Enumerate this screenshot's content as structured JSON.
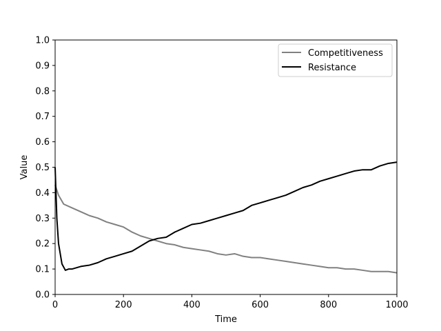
{
  "chart_data": {
    "type": "line",
    "title": "",
    "xlabel": "Time",
    "ylabel": "Value",
    "xlim": [
      0,
      1000
    ],
    "ylim": [
      0.0,
      1.0
    ],
    "xticks": [
      "0",
      "200",
      "400",
      "600",
      "800",
      "1000"
    ],
    "yticks": [
      "0.0",
      "0.1",
      "0.2",
      "0.3",
      "0.4",
      "0.5",
      "0.6",
      "0.7",
      "0.8",
      "0.9",
      "1.0"
    ],
    "grid": false,
    "legend_position": "top-right",
    "series": [
      {
        "name": "Competitiveness",
        "color": "#808080",
        "x": [
          0,
          10,
          25,
          50,
          75,
          100,
          125,
          150,
          175,
          200,
          225,
          250,
          275,
          300,
          325,
          350,
          375,
          400,
          425,
          450,
          475,
          500,
          525,
          550,
          575,
          600,
          625,
          650,
          675,
          700,
          725,
          750,
          775,
          800,
          825,
          850,
          875,
          900,
          925,
          950,
          975,
          1000
        ],
        "values": [
          0.43,
          0.39,
          0.355,
          0.34,
          0.325,
          0.31,
          0.3,
          0.285,
          0.275,
          0.265,
          0.245,
          0.23,
          0.22,
          0.21,
          0.2,
          0.195,
          0.185,
          0.18,
          0.175,
          0.17,
          0.16,
          0.155,
          0.16,
          0.15,
          0.145,
          0.145,
          0.14,
          0.135,
          0.13,
          0.125,
          0.12,
          0.115,
          0.11,
          0.105,
          0.105,
          0.1,
          0.1,
          0.095,
          0.09,
          0.09,
          0.09,
          0.085
        ]
      },
      {
        "name": "Resistance",
        "color": "#000000",
        "x": [
          0,
          5,
          10,
          20,
          30,
          40,
          50,
          75,
          100,
          125,
          150,
          175,
          200,
          225,
          250,
          275,
          300,
          325,
          350,
          375,
          400,
          425,
          450,
          475,
          500,
          525,
          550,
          575,
          600,
          625,
          650,
          675,
          700,
          725,
          750,
          775,
          800,
          825,
          850,
          875,
          900,
          925,
          950,
          975,
          1000
        ],
        "values": [
          0.5,
          0.3,
          0.2,
          0.12,
          0.095,
          0.1,
          0.1,
          0.11,
          0.115,
          0.125,
          0.14,
          0.15,
          0.16,
          0.17,
          0.19,
          0.21,
          0.22,
          0.225,
          0.245,
          0.26,
          0.275,
          0.28,
          0.29,
          0.3,
          0.31,
          0.32,
          0.33,
          0.35,
          0.36,
          0.37,
          0.38,
          0.39,
          0.405,
          0.42,
          0.43,
          0.445,
          0.455,
          0.465,
          0.475,
          0.485,
          0.49,
          0.49,
          0.505,
          0.515,
          0.52
        ]
      }
    ]
  }
}
